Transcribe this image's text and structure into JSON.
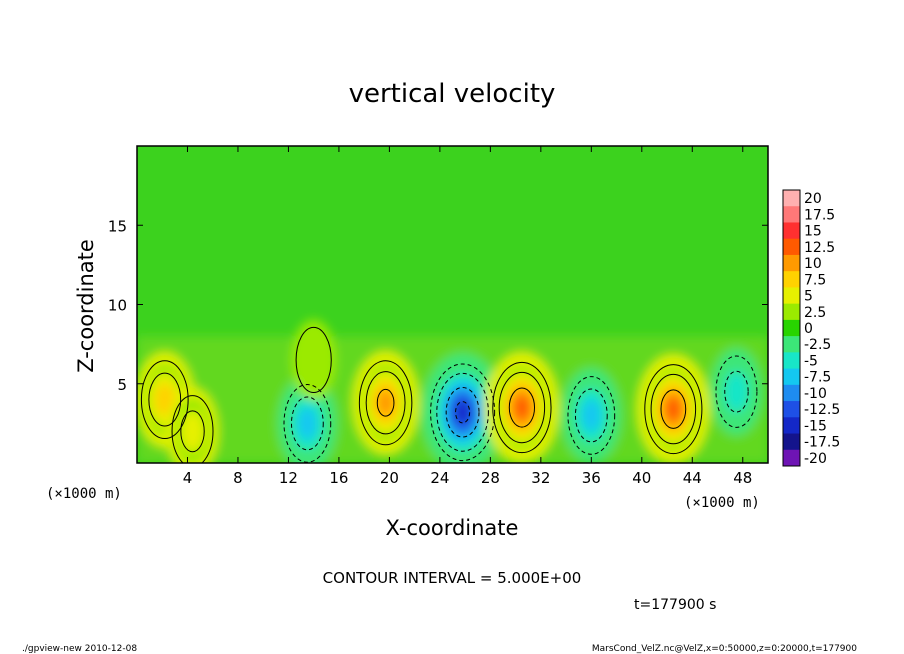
{
  "chart_data": {
    "type": "heatmap",
    "title": "vertical velocity",
    "xlabel": "X-coordinate",
    "ylabel": "Z-coordinate",
    "x_unit": "(×1000 m)",
    "y_unit": "(×1000 m)",
    "xlim": [
      0,
      50
    ],
    "ylim": [
      0,
      20
    ],
    "x_ticks": [
      "4",
      "8",
      "12",
      "16",
      "20",
      "24",
      "28",
      "32",
      "36",
      "40",
      "44",
      "48"
    ],
    "x_tick_values": [
      4,
      8,
      12,
      16,
      20,
      24,
      28,
      32,
      36,
      40,
      44,
      48
    ],
    "y_ticks": [
      "5",
      "10",
      "15"
    ],
    "y_tick_values": [
      5,
      10,
      15
    ],
    "contour_interval_text": "CONTOUR INTERVAL = 5.000E+00",
    "time_text": "t=177900 s",
    "colorbar": {
      "labels": [
        "20",
        "17.5",
        "15",
        "12.5",
        "10",
        "7.5",
        "5",
        "2.5",
        "0",
        "-2.5",
        "-5",
        "-7.5",
        "-10",
        "-12.5",
        "-15",
        "-17.5",
        "-20"
      ],
      "values": [
        20,
        17.5,
        15,
        12.5,
        10,
        7.5,
        5,
        2.5,
        0,
        -2.5,
        -5,
        -7.5,
        -10,
        -12.5,
        -15,
        -17.5,
        -20
      ],
      "colors": [
        "#ffb0b0",
        "#ff7878",
        "#ff3030",
        "#ff5a00",
        "#ff9a00",
        "#ffd200",
        "#e6f000",
        "#9bea00",
        "#28d400",
        "#3ce678",
        "#18e6c8",
        "#14c8f0",
        "#1e8cf0",
        "#1e50e6",
        "#1428c8",
        "#14148c",
        "#6e14b4"
      ]
    },
    "features": [
      {
        "x": 2.2,
        "z": 4.0,
        "value": 7.5
      },
      {
        "x": 4.4,
        "z": 2.0,
        "value": 5.0
      },
      {
        "x": 13.5,
        "z": 2.5,
        "value": -7.5
      },
      {
        "x": 14.0,
        "z": 6.5,
        "value": 2.5
      },
      {
        "x": 19.7,
        "z": 3.8,
        "value": 10.0
      },
      {
        "x": 25.8,
        "z": 3.2,
        "value": -15.0
      },
      {
        "x": 30.5,
        "z": 3.5,
        "value": 12.5
      },
      {
        "x": 36.0,
        "z": 3.0,
        "value": -7.5
      },
      {
        "x": 42.5,
        "z": 3.4,
        "value": 12.0
      },
      {
        "x": 47.5,
        "z": 4.5,
        "value": -5.0
      }
    ]
  },
  "footer": {
    "left": "./gpview-new  2010-12-08",
    "right": "MarsCond_VelZ.nc@VelZ,x=0:50000,z=0:20000,t=177900"
  }
}
